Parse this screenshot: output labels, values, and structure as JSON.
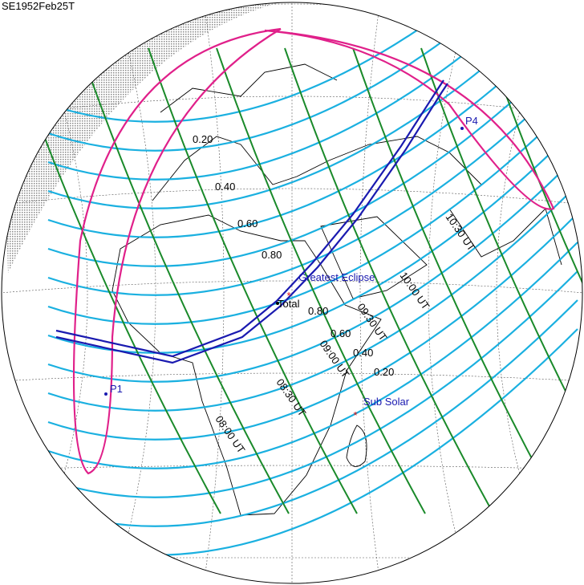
{
  "title": "SE1952Feb25T",
  "points": [
    "P1",
    "P4",
    "Greatest Eclipse",
    "Total",
    "Sub Solar"
  ],
  "magnitude_labels": [
    "0.20",
    "0.40",
    "0.60",
    "0.80",
    "0.80",
    "0.60",
    "0.40",
    "0.20"
  ],
  "time_labels": [
    "10:30 UT",
    "10:00 UT",
    "09:30 UT",
    "09:00 UT",
    "08:30 UT",
    "08:00 UT"
  ]
}
